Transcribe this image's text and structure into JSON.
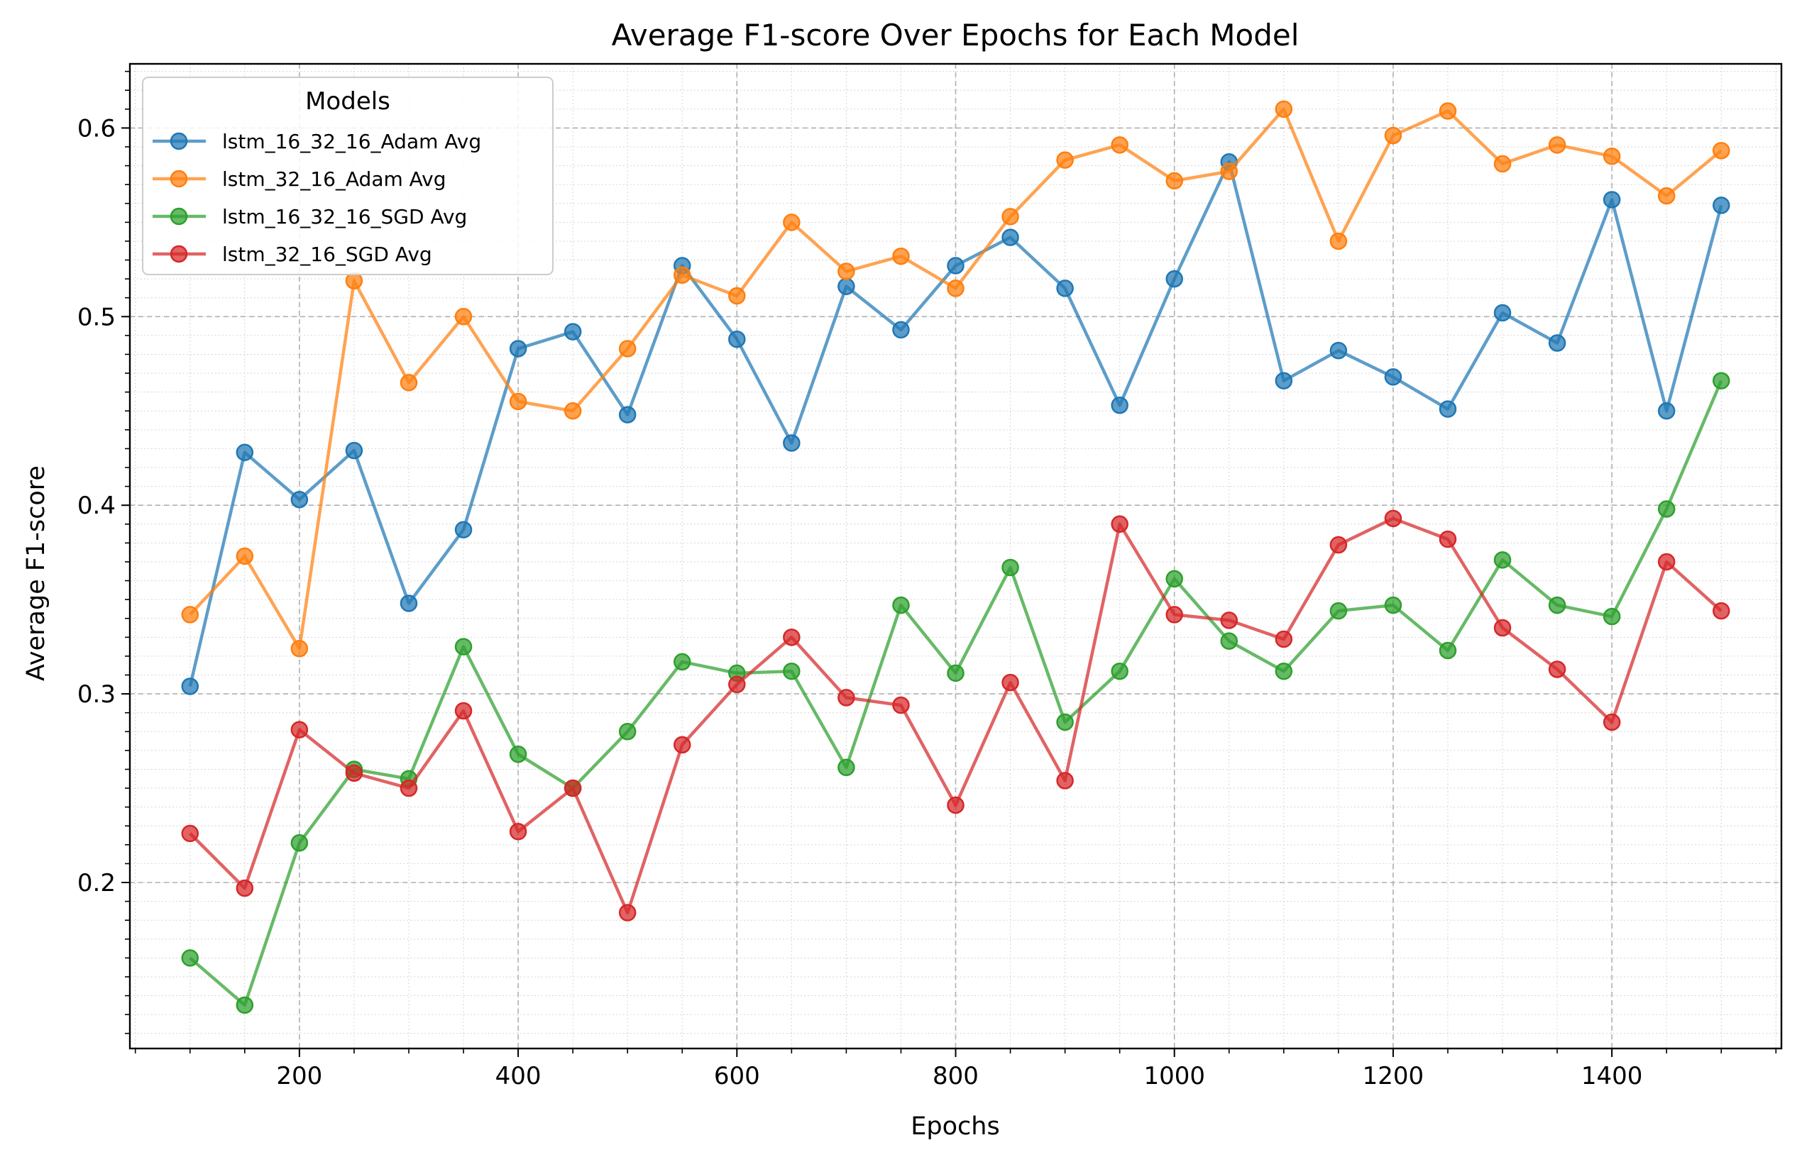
{
  "chart_data": {
    "type": "line",
    "title": "Average F1-score Over Epochs for Each Model",
    "xlabel": "Epochs",
    "ylabel": "Average F1-score",
    "xlim": [
      45,
      1555
    ],
    "ylim": [
      0.112,
      0.634
    ],
    "xticks": [
      200,
      400,
      600,
      800,
      1000,
      1200,
      1400
    ],
    "xtick_labels": [
      "200",
      "400",
      "600",
      "800",
      "1000",
      "1200",
      "1400"
    ],
    "yticks": [
      0.2,
      0.3,
      0.4,
      0.5,
      0.6
    ],
    "ytick_labels": [
      "0.2",
      "0.3",
      "0.4",
      "0.5",
      "0.6"
    ],
    "grid": true,
    "legend": {
      "title": "Models",
      "position": "top-left"
    },
    "x": [
      100,
      150,
      200,
      250,
      300,
      350,
      400,
      450,
      500,
      550,
      600,
      650,
      700,
      750,
      800,
      850,
      900,
      950,
      1000,
      1050,
      1100,
      1150,
      1200,
      1250,
      1300,
      1350,
      1400,
      1450,
      1500
    ],
    "series": [
      {
        "name": "lstm_16_32_16_Adam Avg",
        "color": "#1f77b4",
        "values": [
          0.304,
          0.428,
          0.403,
          0.429,
          0.348,
          0.387,
          0.483,
          0.492,
          0.448,
          0.527,
          0.488,
          0.433,
          0.516,
          0.493,
          0.527,
          0.542,
          0.515,
          0.453,
          0.52,
          0.582,
          0.466,
          0.482,
          0.468,
          0.451,
          0.502,
          0.486,
          0.562,
          0.45,
          0.559
        ]
      },
      {
        "name": "lstm_32_16_Adam Avg",
        "color": "#ff7f0e",
        "values": [
          0.342,
          0.373,
          0.324,
          0.519,
          0.465,
          0.5,
          0.455,
          0.45,
          0.483,
          0.522,
          0.511,
          0.55,
          0.524,
          0.532,
          0.515,
          0.553,
          0.583,
          0.591,
          0.572,
          0.577,
          0.61,
          0.54,
          0.596,
          0.609,
          0.581,
          0.591,
          0.585,
          0.564,
          0.588
        ]
      },
      {
        "name": "lstm_16_32_16_SGD Avg",
        "color": "#2ca02c",
        "values": [
          0.16,
          0.135,
          0.221,
          0.26,
          0.255,
          0.325,
          0.268,
          0.25,
          0.28,
          0.317,
          0.311,
          0.312,
          0.261,
          0.347,
          0.311,
          0.367,
          0.285,
          0.312,
          0.361,
          0.328,
          0.312,
          0.344,
          0.347,
          0.323,
          0.371,
          0.347,
          0.341,
          0.398,
          0.466
        ]
      },
      {
        "name": "lstm_32_16_SGD Avg",
        "color": "#d62728",
        "values": [
          0.226,
          0.197,
          0.281,
          0.258,
          0.25,
          0.291,
          0.227,
          0.25,
          0.184,
          0.273,
          0.305,
          0.33,
          0.298,
          0.294,
          0.241,
          0.306,
          0.254,
          0.39,
          0.342,
          0.339,
          0.329,
          0.379,
          0.393,
          0.382,
          0.335,
          0.313,
          0.285,
          0.37,
          0.344
        ]
      }
    ]
  }
}
